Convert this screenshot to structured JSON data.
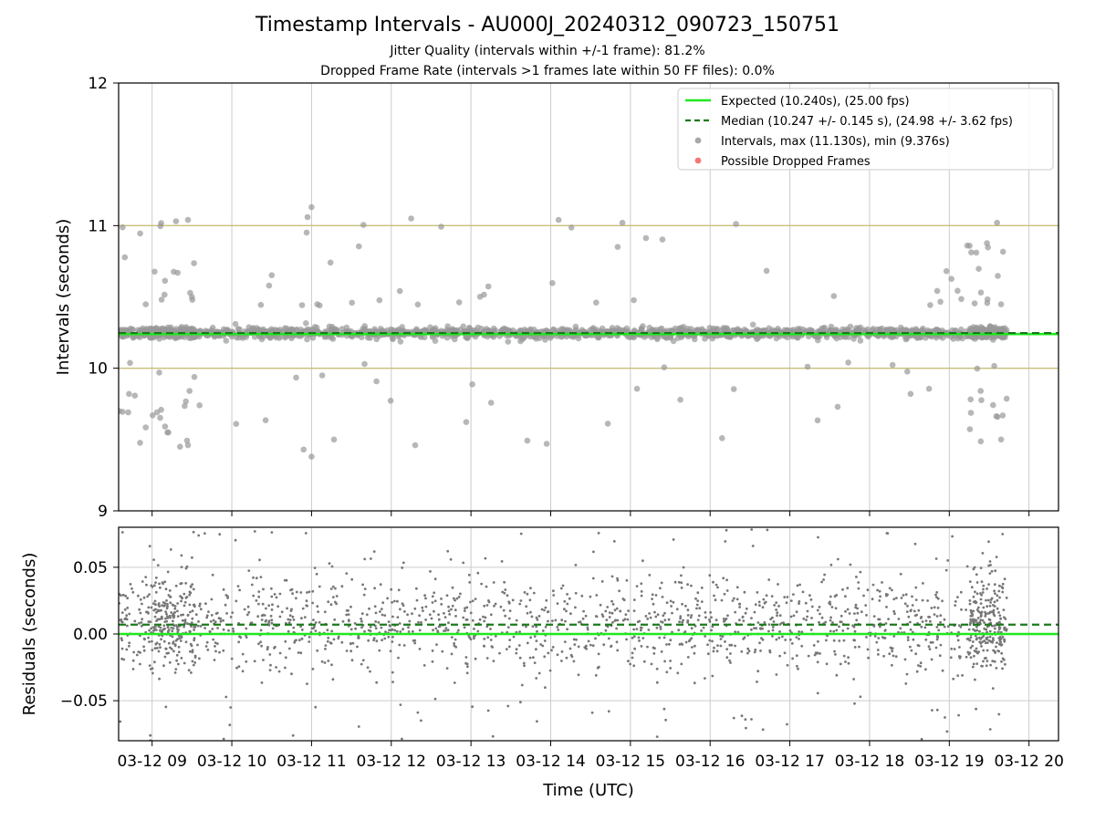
{
  "chart_data": {
    "type": "scatter",
    "title": "Timestamp Intervals - AU000J_20240312_090723_150751",
    "subtitles": [
      "Jitter Quality (intervals within +/-1 frame): 81.2%",
      "Dropped Frame Rate (intervals >1 frames late within 50 FF files): 0.0%"
    ],
    "xlabel": "Time (UTC)",
    "x_tick_labels": [
      "03-12 09",
      "03-12 10",
      "03-12 11",
      "03-12 12",
      "03-12 13",
      "03-12 14",
      "03-12 15",
      "03-12 16",
      "03-12 17",
      "03-12 18",
      "03-12 19",
      "03-12 20"
    ],
    "x_range_hours": [
      8.58,
      20.37
    ],
    "data_x_range_hours": [
      8.58,
      19.75
    ],
    "grid": true,
    "top_panel": {
      "ylabel": "Intervals (seconds)",
      "ylim": [
        9,
        12
      ],
      "yticks": [
        9,
        10,
        11,
        12
      ],
      "yticks_labels": [
        "9",
        "10",
        "11",
        "12"
      ],
      "expected_interval": 10.24,
      "median_interval": 10.247,
      "jitter_bounds": [
        10.0,
        11.0
      ],
      "max_interval": 11.13,
      "min_interval": 9.376,
      "sample_points": [
        {
          "x": 9.3,
          "y": 11.03
        },
        {
          "x": 9.45,
          "y": 11.04
        },
        {
          "x": 11.0,
          "y": 11.13
        },
        {
          "x": 10.95,
          "y": 11.06
        },
        {
          "x": 12.25,
          "y": 11.05
        },
        {
          "x": 14.1,
          "y": 11.04
        },
        {
          "x": 14.9,
          "y": 11.02
        },
        {
          "x": 19.6,
          "y": 11.02
        },
        {
          "x": 11.0,
          "y": 9.38
        },
        {
          "x": 9.35,
          "y": 9.45
        },
        {
          "x": 9.45,
          "y": 9.46
        },
        {
          "x": 10.9,
          "y": 9.43
        },
        {
          "x": 8.7,
          "y": 9.69
        },
        {
          "x": 16.15,
          "y": 9.51
        },
        {
          "x": 17.6,
          "y": 9.73
        },
        {
          "x": 19.65,
          "y": 9.5
        },
        {
          "x": 13.95,
          "y": 9.47
        },
        {
          "x": 12.3,
          "y": 9.46
        }
      ],
      "legend": {
        "placement": "top-right",
        "entries": [
          {
            "label": "Expected (10.240s), (25.00 fps)",
            "style": "solid-line",
            "color": "#1ee81e"
          },
          {
            "label": "Median (10.247 +/- 0.145 s), (24.98 +/- 3.62 fps)",
            "style": "dashed-line",
            "color": "#1a7a1a"
          },
          {
            "label": "Intervals, max (11.130s), min (9.376s)",
            "style": "dot",
            "color": "#999999"
          },
          {
            "label": "Possible Dropped Frames",
            "style": "dot",
            "color": "#f06060"
          }
        ]
      }
    },
    "bottom_panel": {
      "ylabel": "Residuals (seconds)",
      "ylim": [
        -0.08,
        0.08
      ],
      "yticks": [
        -0.05,
        0.0,
        0.05
      ],
      "yticks_labels": [
        "−0.05",
        "0.00",
        "0.05"
      ],
      "expected_residual": 0.0,
      "median_residual": 0.007
    },
    "colors": {
      "expected": "#1ee81e",
      "median": "#1a7a1a",
      "points": "#999999",
      "residual_points": "#777777",
      "jitter_bound": "#c8bf7a",
      "grid": "#cccccc"
    }
  }
}
